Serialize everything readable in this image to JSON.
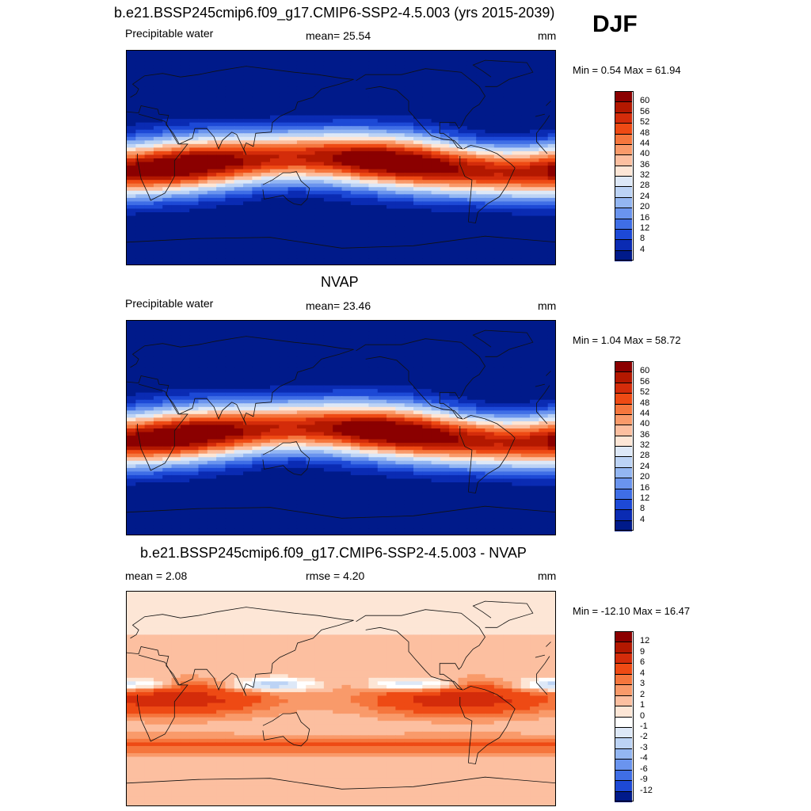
{
  "figure": {
    "season": "DJF"
  },
  "chart_data": [
    {
      "type": "heatmap",
      "title": "b.e21.BSSP245cmip6.f09_g17.CMIP6-SSP2-4.5.003 (yrs 2015-2039)",
      "left_label": "Precipitable water",
      "center_label": "mean=  25.54",
      "units": "mm",
      "min_max": "Min =   0.54 Max =  61.94",
      "min": 0.54,
      "max": 61.94,
      "mean": 25.54,
      "colorbar": {
        "levels": [
          "60",
          "56",
          "52",
          "48",
          "44",
          "40",
          "36",
          "32",
          "28",
          "24",
          "20",
          "16",
          "12",
          "8",
          "4"
        ],
        "colors": [
          "#8b0000",
          "#b31800",
          "#d42c0a",
          "#ee4a14",
          "#f5763d",
          "#f99a6a",
          "#fcbfa0",
          "#fde6d6",
          "#dde8f7",
          "#bcd3f5",
          "#93b6f2",
          "#6a94ee",
          "#3f6ee6",
          "#1d49d6",
          "#0a2bb3",
          "#001a8a"
        ]
      },
      "ylim": [
        0,
        62
      ]
    },
    {
      "type": "heatmap",
      "title": "NVAP",
      "left_label": "Precipitable water",
      "center_label": "mean=  23.46",
      "units": "mm",
      "min_max": "Min =   1.04 Max =  58.72",
      "min": 1.04,
      "max": 58.72,
      "mean": 23.46,
      "colorbar": {
        "levels": [
          "60",
          "56",
          "52",
          "48",
          "44",
          "40",
          "36",
          "32",
          "28",
          "24",
          "20",
          "16",
          "12",
          "8",
          "4"
        ],
        "colors": [
          "#8b0000",
          "#b31800",
          "#d42c0a",
          "#ee4a14",
          "#f5763d",
          "#f99a6a",
          "#fcbfa0",
          "#fde6d6",
          "#dde8f7",
          "#bcd3f5",
          "#93b6f2",
          "#6a94ee",
          "#3f6ee6",
          "#1d49d6",
          "#0a2bb3",
          "#001a8a"
        ]
      },
      "ylim": [
        0,
        62
      ]
    },
    {
      "type": "heatmap",
      "title": "b.e21.BSSP245cmip6.f09_g17.CMIP6-SSP2-4.5.003 - NVAP",
      "left_label": "mean =   2.08",
      "center_label": "rmse =   4.20",
      "units": "mm",
      "min_max": "Min = -12.10 Max =  16.47",
      "min": -12.1,
      "max": 16.47,
      "mean": 2.08,
      "rmse": 4.2,
      "colorbar": {
        "levels": [
          "12",
          "9",
          "6",
          "4",
          "3",
          "2",
          "1",
          "0",
          "-1",
          "-2",
          "-3",
          "-4",
          "-6",
          "-9",
          "-12"
        ],
        "colors": [
          "#8b0000",
          "#b31800",
          "#d42c0a",
          "#ee4a14",
          "#f5763d",
          "#f99a6a",
          "#fcbfa0",
          "#fde6d6",
          "#ffffff",
          "#dde8f7",
          "#bcd3f5",
          "#93b6f2",
          "#6a94ee",
          "#3f6ee6",
          "#1d49d6",
          "#001a8a"
        ]
      }
    }
  ]
}
